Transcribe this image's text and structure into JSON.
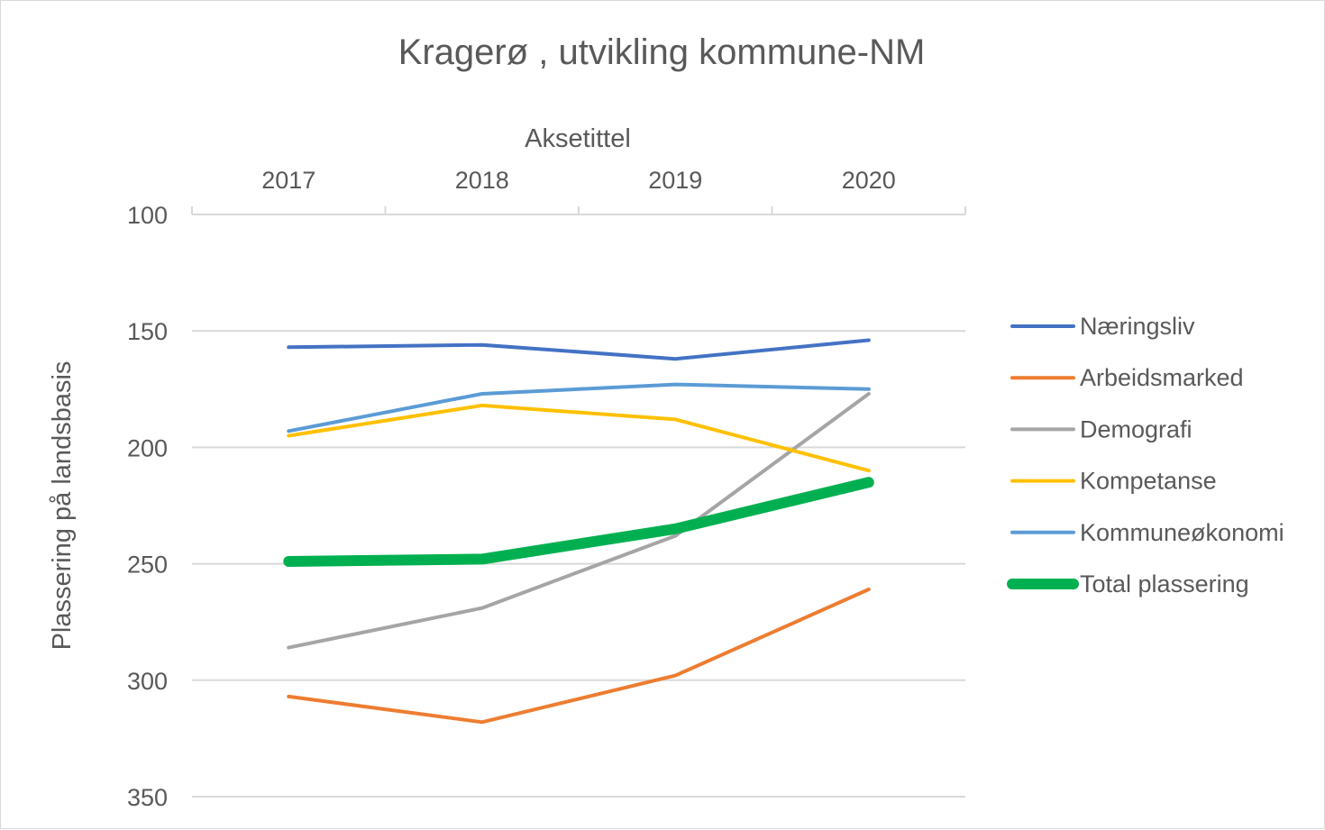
{
  "chart_data": {
    "type": "line",
    "title": "Kragerø , utvikling kommune-NM",
    "xlabel": "Aksetittel",
    "ylabel": "Plassering på landsbasis",
    "categories": [
      "2017",
      "2018",
      "2019",
      "2020"
    ],
    "x_axis_position": "top",
    "y_reversed": true,
    "ylim": [
      100,
      350
    ],
    "yticks": [
      "100",
      "150",
      "200",
      "250",
      "300",
      "350"
    ],
    "grid": true,
    "legend_position": "right",
    "series": [
      {
        "name": "Næringsliv",
        "color": "#4472C4",
        "values": [
          157,
          156,
          162,
          154
        ]
      },
      {
        "name": "Arbeidsmarked",
        "color": "#ED7D31",
        "values": [
          307,
          318,
          298,
          261
        ]
      },
      {
        "name": "Demografi",
        "color": "#A5A5A5",
        "values": [
          286,
          269,
          238,
          177
        ]
      },
      {
        "name": "Kompetanse",
        "color": "#FFC000",
        "values": [
          195,
          182,
          188,
          210
        ]
      },
      {
        "name": "Kommuneøkonomi",
        "color": "#5B9BD5",
        "values": [
          193,
          177,
          173,
          175
        ]
      },
      {
        "name": "Total plassering",
        "color": "#00B050",
        "values": [
          249,
          248,
          235,
          215
        ],
        "bold": true
      }
    ]
  }
}
